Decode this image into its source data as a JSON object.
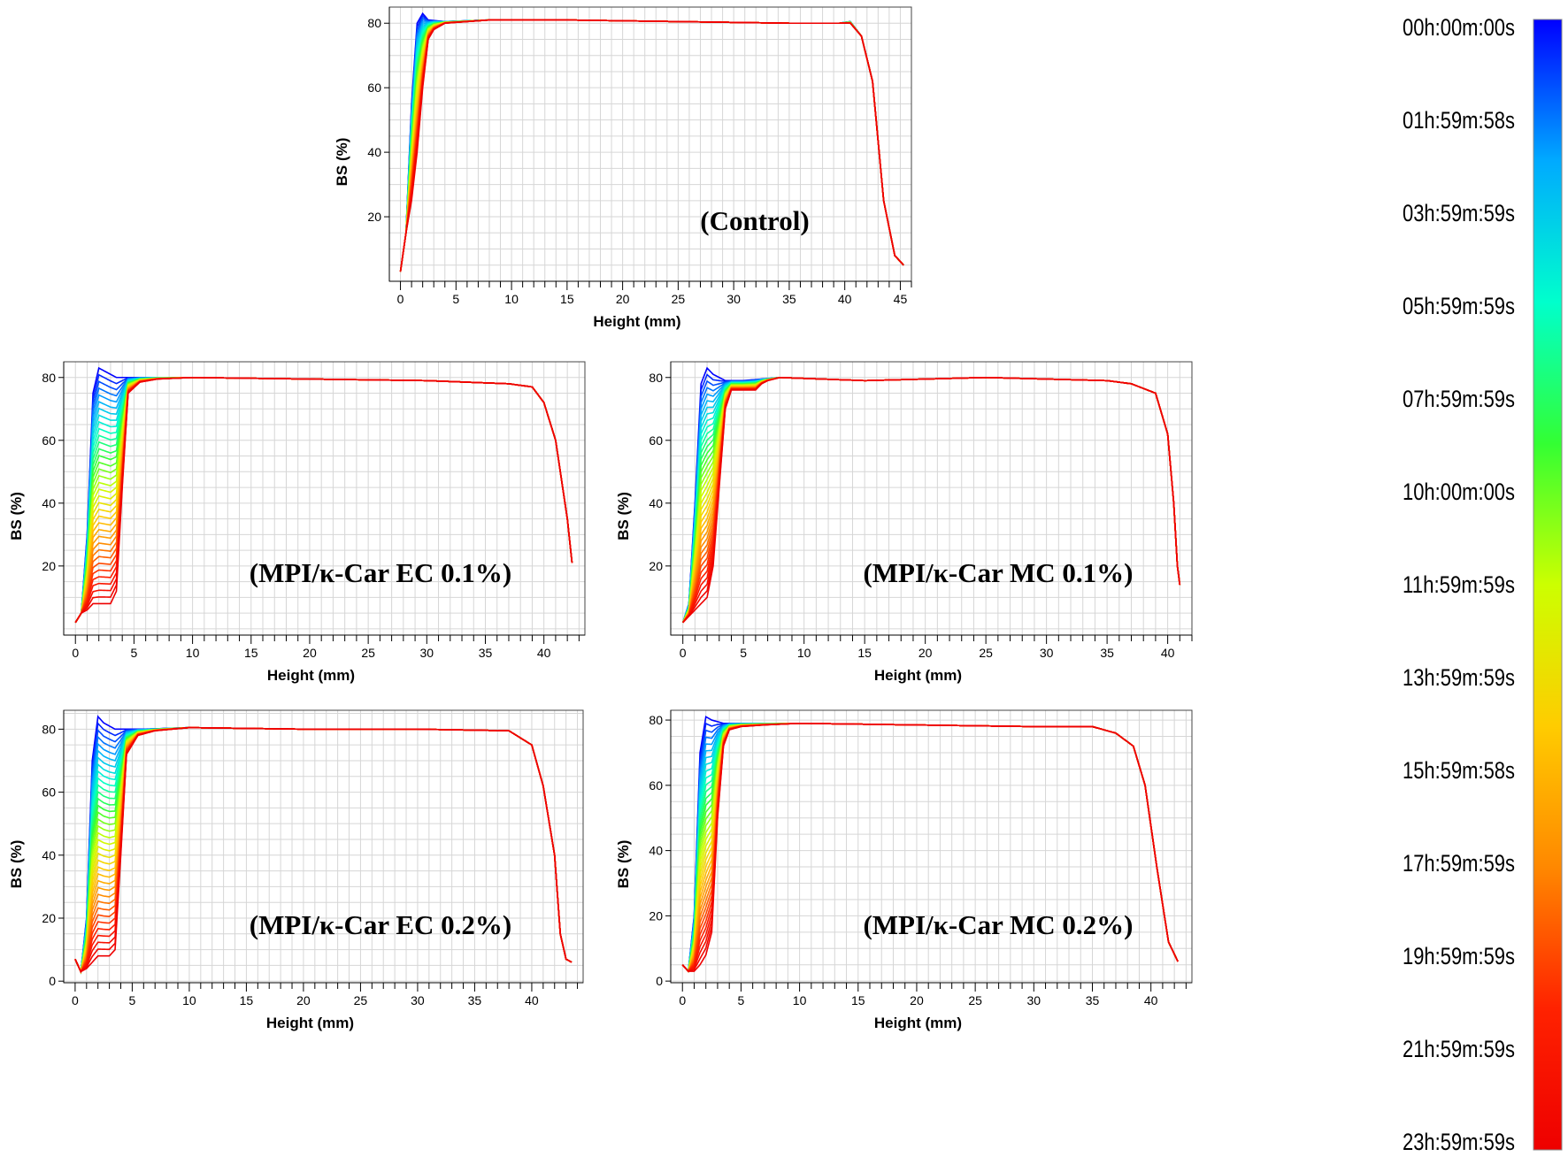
{
  "colorbar": {
    "labels": [
      "00h:00m:00s",
      "01h:59m:58s",
      "03h:59m:59s",
      "05h:59m:59s",
      "07h:59m:59s",
      "10h:00m:00s",
      "11h:59m:59s",
      "13h:59m:59s",
      "15h:59m:58s",
      "17h:59m:59s",
      "19h:59m:59s",
      "21h:59m:59s",
      "23h:59m:59s"
    ],
    "colors": [
      "#0000ff",
      "#00aaff",
      "#00ffcc",
      "#33ff33",
      "#ccff00",
      "#ffcc00",
      "#ff8800",
      "#ff2200",
      "#ee0000"
    ]
  },
  "chart_data": [
    {
      "type": "line",
      "title": "(Control)",
      "xlabel": "Height (mm)",
      "ylabel": "BS (%)",
      "xlim": [
        -1,
        46
      ],
      "ylim": [
        0,
        85
      ],
      "xticks": [
        0,
        5,
        10,
        15,
        20,
        25,
        30,
        35,
        40,
        45
      ],
      "yticks": [
        20,
        40,
        60,
        80
      ],
      "grid": true,
      "series_count": 13,
      "time_color_scale": "blue-to-red",
      "first_scan": {
        "x": [
          0,
          0.5,
          1,
          1.5,
          2,
          2.5,
          4,
          8,
          15,
          25,
          35,
          39.5,
          40.5,
          41.5,
          42.5,
          43.5,
          44.5,
          45.3
        ],
        "y": [
          3,
          15,
          55,
          80,
          83,
          81,
          80.5,
          81,
          81,
          80.5,
          80,
          80,
          80.5,
          76,
          62,
          25,
          8,
          5
        ]
      },
      "last_scan": {
        "x": [
          0,
          0.5,
          1,
          1.5,
          2,
          2.5,
          3,
          4,
          8,
          15,
          25,
          35,
          39.5,
          40.5,
          41.5,
          42.5,
          43.5,
          44.5,
          45.3
        ],
        "y": [
          3,
          15,
          25,
          40,
          60,
          75,
          78,
          80,
          81,
          81,
          80.5,
          80,
          80,
          80,
          76,
          62,
          25,
          8,
          5
        ]
      }
    },
    {
      "type": "line",
      "title": "(MPI/κ-Car EC 0.1%)",
      "xlabel": "Height (mm)",
      "ylabel": "BS (%)",
      "xlim": [
        -1,
        43.5
      ],
      "ylim": [
        -2,
        85
      ],
      "xticks": [
        0,
        5,
        10,
        15,
        20,
        25,
        30,
        35,
        40
      ],
      "yticks": [
        20,
        40,
        60,
        80
      ],
      "grid": true,
      "series_count": 13,
      "time_color_scale": "blue-to-red",
      "first_scan": {
        "x": [
          0,
          0.5,
          1,
          1.5,
          2,
          2.5,
          3.5,
          6,
          10,
          20,
          30,
          37,
          39,
          40,
          41,
          42,
          42.4
        ],
        "y": [
          2,
          5,
          30,
          75,
          83,
          82,
          80,
          80,
          80,
          79.5,
          79,
          78,
          77,
          72,
          60,
          35,
          21
        ]
      },
      "last_scan": {
        "x": [
          0,
          0.5,
          1,
          1.5,
          2,
          3,
          3.5,
          4,
          4.5,
          5.5,
          7,
          10,
          20,
          30,
          37,
          39,
          40,
          41,
          42,
          42.4
        ],
        "y": [
          2,
          5,
          6,
          8,
          8,
          8,
          12,
          45,
          75,
          78.5,
          79.5,
          80,
          79.5,
          79,
          78,
          77,
          72,
          60,
          35,
          21
        ]
      }
    },
    {
      "type": "line",
      "title": "(MPI/κ-Car MC 0.1%)",
      "xlabel": "Height (mm)",
      "ylabel": "BS (%)",
      "xlim": [
        -1,
        42
      ],
      "ylim": [
        -2,
        85
      ],
      "xticks": [
        0,
        5,
        10,
        15,
        20,
        25,
        30,
        35,
        40
      ],
      "yticks": [
        20,
        40,
        60,
        80
      ],
      "grid": true,
      "series_count": 13,
      "time_color_scale": "blue-to-red",
      "first_scan": {
        "x": [
          0,
          0.5,
          1,
          1.5,
          2,
          2.5,
          3.5,
          5,
          8,
          15,
          25,
          35,
          37,
          39,
          40,
          40.5,
          40.8,
          41
        ],
        "y": [
          2,
          8,
          40,
          78,
          83,
          81,
          79,
          79,
          80,
          79,
          80,
          79,
          78,
          75,
          62,
          40,
          20,
          14
        ]
      },
      "last_scan": {
        "x": [
          0,
          0.5,
          1,
          1.5,
          2,
          2.5,
          3,
          3.5,
          4,
          5,
          6,
          6.5,
          7,
          8,
          15,
          25,
          35,
          37,
          39,
          40,
          40.5,
          40.8,
          41
        ],
        "y": [
          2,
          4,
          6,
          8,
          10,
          20,
          45,
          70,
          76,
          76,
          76,
          78,
          79,
          80,
          79,
          80,
          79,
          78,
          75,
          62,
          40,
          20,
          14
        ]
      }
    },
    {
      "type": "line",
      "title": "(MPI/κ-Car EC 0.2%)",
      "xlabel": "Height (mm)",
      "ylabel": "BS (%)",
      "xlim": [
        -1,
        44.5
      ],
      "ylim": [
        -0.5,
        86
      ],
      "xticks": [
        0,
        5,
        10,
        15,
        20,
        25,
        30,
        35,
        40
      ],
      "yticks": [
        0,
        20,
        40,
        60,
        80
      ],
      "grid": true,
      "series_count": 13,
      "time_color_scale": "blue-to-red",
      "first_scan": {
        "x": [
          0,
          0.5,
          1,
          1.5,
          2,
          2.5,
          3.5,
          6,
          10,
          20,
          30,
          38,
          40,
          41,
          42,
          42.5,
          43,
          43.5
        ],
        "y": [
          7,
          3,
          20,
          70,
          84,
          82,
          80,
          80,
          80.5,
          80,
          80,
          79.5,
          75,
          62,
          40,
          15,
          7,
          6
        ]
      },
      "last_scan": {
        "x": [
          0,
          0.5,
          1,
          1.5,
          2,
          3,
          3.5,
          4,
          4.5,
          5.5,
          7,
          10,
          20,
          30,
          38,
          40,
          41,
          42,
          42.5,
          43,
          43.5
        ],
        "y": [
          7,
          3,
          4,
          6,
          8,
          8,
          10,
          40,
          72,
          78,
          79.5,
          80.5,
          80,
          80,
          79.5,
          75,
          62,
          40,
          15,
          7,
          6
        ]
      }
    },
    {
      "type": "line",
      "title": "(MPI/κ-Car MC 0.2%)",
      "xlabel": "Height (mm)",
      "ylabel": "BS (%)",
      "xlim": [
        -1,
        43.5
      ],
      "ylim": [
        -0.5,
        83
      ],
      "xticks": [
        0,
        5,
        10,
        15,
        20,
        25,
        30,
        35,
        40
      ],
      "yticks": [
        0,
        20,
        40,
        60,
        80
      ],
      "grid": true,
      "series_count": 13,
      "time_color_scale": "blue-to-red",
      "first_scan": {
        "x": [
          0,
          0.5,
          1,
          1.5,
          2,
          2.5,
          3.5,
          6,
          10,
          20,
          30,
          35,
          37,
          38.5,
          39.5,
          40.5,
          41.5,
          42.3
        ],
        "y": [
          5,
          3,
          20,
          70,
          81,
          80,
          79,
          79,
          79,
          78.5,
          78,
          78,
          76,
          72,
          60,
          35,
          12,
          6
        ]
      },
      "last_scan": {
        "x": [
          0,
          0.5,
          1,
          1.5,
          2,
          2.5,
          3,
          3.5,
          4,
          5,
          7,
          10,
          20,
          30,
          35,
          37,
          38.5,
          39.5,
          40.5,
          41.5,
          42.3
        ],
        "y": [
          5,
          3,
          3,
          5,
          8,
          15,
          50,
          72,
          77,
          78,
          78.5,
          79,
          78.5,
          78,
          78,
          76,
          72,
          60,
          35,
          12,
          6
        ]
      }
    }
  ]
}
